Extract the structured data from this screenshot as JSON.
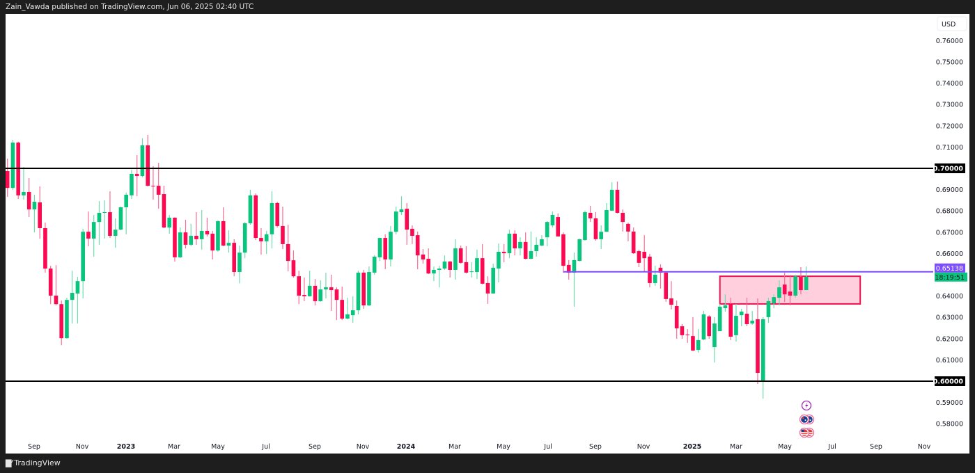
{
  "header": {
    "publisher_line": "Zain_Vawda published on TradingView.com, Jun 06, 2025 02:40 UTC"
  },
  "footer": {
    "brand": "TradingView",
    "logo_mark": "TV"
  },
  "chart_data": {
    "type": "candlestick",
    "interval": "1W",
    "currency_label": "USD",
    "colors": {
      "up": "#08c47d",
      "down": "#fb0a52",
      "up_wick": "#6fdcae",
      "down_wick": "#fb6b93",
      "ray": "#7b4dff",
      "zone_fill": "#ffcfde",
      "zone_border": "#f0134f",
      "level": "#000000",
      "countdown_bg": "#08c47d"
    },
    "ylim": [
      0.575,
      0.767
    ],
    "y_ticks": [
      "0.76000",
      "0.75000",
      "0.74000",
      "0.73000",
      "0.72000",
      "0.71000",
      "0.69000",
      "0.68000",
      "0.67000",
      "0.66000",
      "0.64000",
      "0.63000",
      "0.62000",
      "0.61000",
      "0.59000",
      "0.58000"
    ],
    "x_ticks": [
      {
        "label": "Sep",
        "year": false
      },
      {
        "label": "Nov",
        "year": false
      },
      {
        "label": "2023",
        "year": true
      },
      {
        "label": "Mar",
        "year": false
      },
      {
        "label": "May",
        "year": false
      },
      {
        "label": "Jul",
        "year": false
      },
      {
        "label": "Sep",
        "year": false
      },
      {
        "label": "Nov",
        "year": false
      },
      {
        "label": "2024",
        "year": true
      },
      {
        "label": "Mar",
        "year": false
      },
      {
        "label": "May",
        "year": false
      },
      {
        "label": "Jul",
        "year": false
      },
      {
        "label": "Sep",
        "year": false
      },
      {
        "label": "Nov",
        "year": false
      },
      {
        "label": "2025",
        "year": true
      },
      {
        "label": "Mar",
        "year": false
      },
      {
        "label": "May",
        "year": false
      },
      {
        "label": "Jul",
        "year": false
      },
      {
        "label": "Sep",
        "year": false
      },
      {
        "label": "Nov",
        "year": false
      }
    ],
    "levels": [
      {
        "price": 0.7,
        "label": "0.70000"
      },
      {
        "price": 0.6,
        "label": "0.60000"
      }
    ],
    "ray": {
      "start": "2024-07-22",
      "price": 0.65138,
      "label": "0.65138"
    },
    "countdown": "18:19:51",
    "zone": {
      "start": "2025-02-10",
      "end": "2025-08-11",
      "top": 0.6493,
      "bottom": 0.6363
    },
    "events": [
      {
        "icon": "lightning-icon",
        "color": "#9c27b0"
      },
      {
        "icon": "australia-flag-icon",
        "color": "#1e4fa0"
      },
      {
        "icon": "us-flag-icon",
        "color": "#e53935"
      }
    ],
    "columns": [
      "date",
      "open",
      "high",
      "low",
      "close"
    ],
    "candles": [
      [
        "2022-08-01",
        0.6987,
        0.7046,
        0.6866,
        0.6908
      ],
      [
        "2022-08-08",
        0.6908,
        0.7134,
        0.6899,
        0.7121
      ],
      [
        "2022-08-15",
        0.7121,
        0.7125,
        0.6856,
        0.6873
      ],
      [
        "2022-08-22",
        0.6873,
        0.7007,
        0.6853,
        0.6889
      ],
      [
        "2022-08-29",
        0.6889,
        0.6954,
        0.6771,
        0.6807
      ],
      [
        "2022-09-05",
        0.6807,
        0.6876,
        0.6699,
        0.6843
      ],
      [
        "2022-09-12",
        0.684,
        0.6915,
        0.667,
        0.6719
      ],
      [
        "2022-09-19",
        0.6719,
        0.6745,
        0.651,
        0.6529
      ],
      [
        "2022-09-26",
        0.6529,
        0.6542,
        0.6362,
        0.6402
      ],
      [
        "2022-10-03",
        0.6402,
        0.6545,
        0.6356,
        0.6362
      ],
      [
        "2022-10-10",
        0.6362,
        0.6379,
        0.6169,
        0.6202
      ],
      [
        "2022-10-17",
        0.6202,
        0.6392,
        0.62,
        0.6382
      ],
      [
        "2022-10-24",
        0.6382,
        0.6519,
        0.6271,
        0.6415
      ],
      [
        "2022-10-31",
        0.6412,
        0.649,
        0.6271,
        0.647
      ],
      [
        "2022-11-07",
        0.647,
        0.6716,
        0.6389,
        0.6702
      ],
      [
        "2022-11-14",
        0.6702,
        0.6797,
        0.6634,
        0.667
      ],
      [
        "2022-11-21",
        0.667,
        0.6781,
        0.6585,
        0.6748
      ],
      [
        "2022-11-28",
        0.6748,
        0.6846,
        0.6641,
        0.6791
      ],
      [
        "2022-12-05",
        0.6791,
        0.685,
        0.667,
        0.6794
      ],
      [
        "2022-12-12",
        0.6794,
        0.6892,
        0.6673,
        0.6683
      ],
      [
        "2022-12-19",
        0.6683,
        0.6765,
        0.6627,
        0.6712
      ],
      [
        "2022-12-26",
        0.6712,
        0.682,
        0.6709,
        0.6817
      ],
      [
        "2023-01-02",
        0.6817,
        0.6886,
        0.669,
        0.6876
      ],
      [
        "2023-01-09",
        0.6873,
        0.6993,
        0.6856,
        0.6974
      ],
      [
        "2023-01-16",
        0.6974,
        0.7062,
        0.6869,
        0.6964
      ],
      [
        "2023-01-23",
        0.6964,
        0.7141,
        0.6958,
        0.7108
      ],
      [
        "2023-01-30",
        0.7108,
        0.7157,
        0.6915,
        0.6918
      ],
      [
        "2023-02-06",
        0.6918,
        0.701,
        0.6853,
        0.6915
      ],
      [
        "2023-02-13",
        0.6918,
        0.7026,
        0.681,
        0.6876
      ],
      [
        "2023-02-20",
        0.6879,
        0.6918,
        0.6719,
        0.6722
      ],
      [
        "2023-02-27",
        0.6722,
        0.6781,
        0.6693,
        0.6768
      ],
      [
        "2023-03-06",
        0.6768,
        0.677,
        0.6562,
        0.6582
      ],
      [
        "2023-03-13",
        0.6582,
        0.6722,
        0.6578,
        0.6699
      ],
      [
        "2023-03-20",
        0.6699,
        0.6758,
        0.6624,
        0.6641
      ],
      [
        "2023-03-27",
        0.6641,
        0.6739,
        0.6634,
        0.6683
      ],
      [
        "2023-04-03",
        0.6683,
        0.6794,
        0.6641,
        0.6667
      ],
      [
        "2023-04-10",
        0.6667,
        0.6804,
        0.6618,
        0.6706
      ],
      [
        "2023-04-17",
        0.6706,
        0.6768,
        0.668,
        0.669
      ],
      [
        "2023-04-24",
        0.6693,
        0.6706,
        0.6572,
        0.6614
      ],
      [
        "2023-05-01",
        0.6614,
        0.6755,
        0.6608,
        0.6752
      ],
      [
        "2023-05-08",
        0.6752,
        0.6817,
        0.6634,
        0.6637
      ],
      [
        "2023-05-15",
        0.6637,
        0.6709,
        0.6604,
        0.665
      ],
      [
        "2023-05-22",
        0.665,
        0.6667,
        0.6493,
        0.6513
      ],
      [
        "2023-05-29",
        0.6513,
        0.6637,
        0.646,
        0.6604
      ],
      [
        "2023-06-05",
        0.6604,
        0.6748,
        0.6578,
        0.6742
      ],
      [
        "2023-06-12",
        0.6742,
        0.6899,
        0.6735,
        0.6873
      ],
      [
        "2023-06-19",
        0.6873,
        0.6882,
        0.6663,
        0.6673
      ],
      [
        "2023-06-26",
        0.6673,
        0.6719,
        0.6595,
        0.6657
      ],
      [
        "2023-07-03",
        0.6657,
        0.6706,
        0.6598,
        0.669
      ],
      [
        "2023-07-10",
        0.669,
        0.6892,
        0.6624,
        0.6837
      ],
      [
        "2023-07-17",
        0.6837,
        0.6843,
        0.6722,
        0.6729
      ],
      [
        "2023-07-24",
        0.6729,
        0.682,
        0.6621,
        0.6644
      ],
      [
        "2023-07-31",
        0.6644,
        0.6735,
        0.6516,
        0.6565
      ],
      [
        "2023-08-07",
        0.6568,
        0.6614,
        0.6487,
        0.6493
      ],
      [
        "2023-08-14",
        0.6493,
        0.6519,
        0.6362,
        0.6402
      ],
      [
        "2023-08-21",
        0.6405,
        0.6487,
        0.6376,
        0.6399
      ],
      [
        "2023-08-28",
        0.6399,
        0.6519,
        0.6397,
        0.6448
      ],
      [
        "2023-09-04",
        0.6448,
        0.648,
        0.6356,
        0.6376
      ],
      [
        "2023-09-11",
        0.6376,
        0.6474,
        0.6373,
        0.6431
      ],
      [
        "2023-09-18",
        0.6431,
        0.651,
        0.6389,
        0.6441
      ],
      [
        "2023-09-25",
        0.6441,
        0.65,
        0.633,
        0.6428
      ],
      [
        "2023-10-02",
        0.6431,
        0.6441,
        0.6287,
        0.6382
      ],
      [
        "2023-10-09",
        0.6382,
        0.6444,
        0.6287,
        0.6294
      ],
      [
        "2023-10-16",
        0.6294,
        0.6392,
        0.629,
        0.6314
      ],
      [
        "2023-10-23",
        0.631,
        0.6399,
        0.6274,
        0.6333
      ],
      [
        "2023-10-30",
        0.6333,
        0.6519,
        0.6314,
        0.651
      ],
      [
        "2023-11-06",
        0.651,
        0.6523,
        0.634,
        0.6356
      ],
      [
        "2023-11-13",
        0.6356,
        0.6539,
        0.6353,
        0.6513
      ],
      [
        "2023-11-20",
        0.651,
        0.6592,
        0.65,
        0.6585
      ],
      [
        "2023-11-27",
        0.6582,
        0.6675,
        0.6565,
        0.6673
      ],
      [
        "2023-12-04",
        0.6673,
        0.669,
        0.6526,
        0.6572
      ],
      [
        "2023-12-11",
        0.6572,
        0.6729,
        0.6539,
        0.6702
      ],
      [
        "2023-12-18",
        0.6702,
        0.682,
        0.669,
        0.6797
      ],
      [
        "2023-12-25",
        0.6794,
        0.6869,
        0.6781,
        0.6807
      ],
      [
        "2024-01-01",
        0.681,
        0.6837,
        0.6641,
        0.6712
      ],
      [
        "2024-01-08",
        0.6716,
        0.6732,
        0.6644,
        0.6683
      ],
      [
        "2024-01-15",
        0.6686,
        0.6703,
        0.6526,
        0.6591
      ],
      [
        "2024-01-22",
        0.6595,
        0.6621,
        0.6552,
        0.6572
      ],
      [
        "2024-01-29",
        0.6575,
        0.6624,
        0.6503,
        0.6506
      ],
      [
        "2024-02-05",
        0.6506,
        0.6539,
        0.647,
        0.6523
      ],
      [
        "2024-02-12",
        0.6523,
        0.6542,
        0.6441,
        0.6529
      ],
      [
        "2024-02-19",
        0.6529,
        0.6591,
        0.6523,
        0.6562
      ],
      [
        "2024-02-26",
        0.6562,
        0.6565,
        0.6487,
        0.6523
      ],
      [
        "2024-03-04",
        0.6523,
        0.6667,
        0.6477,
        0.6624
      ],
      [
        "2024-03-11",
        0.6624,
        0.6637,
        0.6552,
        0.6556
      ],
      [
        "2024-03-18",
        0.6559,
        0.6634,
        0.6506,
        0.651
      ],
      [
        "2024-03-25",
        0.6513,
        0.6559,
        0.6487,
        0.6516
      ],
      [
        "2024-04-01",
        0.6513,
        0.6618,
        0.648,
        0.6578
      ],
      [
        "2024-04-08",
        0.6578,
        0.6644,
        0.6455,
        0.6458
      ],
      [
        "2024-04-15",
        0.6461,
        0.6493,
        0.6363,
        0.6412
      ],
      [
        "2024-04-22",
        0.6412,
        0.6552,
        0.641,
        0.6533
      ],
      [
        "2024-04-29",
        0.6529,
        0.6647,
        0.6464,
        0.6608
      ],
      [
        "2024-05-06",
        0.6608,
        0.6644,
        0.6559,
        0.6601
      ],
      [
        "2024-05-13",
        0.6601,
        0.6712,
        0.6578,
        0.6693
      ],
      [
        "2024-05-20",
        0.6693,
        0.6709,
        0.6591,
        0.6624
      ],
      [
        "2024-05-27",
        0.6624,
        0.6676,
        0.6591,
        0.6654
      ],
      [
        "2024-06-03",
        0.6654,
        0.6699,
        0.6572,
        0.6575
      ],
      [
        "2024-06-10",
        0.6575,
        0.6703,
        0.6572,
        0.6611
      ],
      [
        "2024-06-17",
        0.6611,
        0.6676,
        0.6585,
        0.6641
      ],
      [
        "2024-06-24",
        0.6637,
        0.6686,
        0.6634,
        0.6667
      ],
      [
        "2024-07-01",
        0.6676,
        0.6752,
        0.6634,
        0.6748
      ],
      [
        "2024-07-08",
        0.6732,
        0.6797,
        0.6722,
        0.6781
      ],
      [
        "2024-07-15",
        0.6771,
        0.6788,
        0.6679,
        0.668
      ],
      [
        "2024-07-22",
        0.669,
        0.6699,
        0.651,
        0.6542
      ],
      [
        "2024-07-29",
        0.6546,
        0.6569,
        0.6477,
        0.651
      ],
      [
        "2024-08-05",
        0.651,
        0.6604,
        0.635,
        0.6569
      ],
      [
        "2024-08-12",
        0.6565,
        0.667,
        0.6563,
        0.6667
      ],
      [
        "2024-08-19",
        0.6663,
        0.6801,
        0.666,
        0.6794
      ],
      [
        "2024-08-26",
        0.6791,
        0.6824,
        0.6748,
        0.6765
      ],
      [
        "2024-09-02",
        0.6765,
        0.6794,
        0.666,
        0.6667
      ],
      [
        "2024-09-09",
        0.6667,
        0.6732,
        0.6621,
        0.6702
      ],
      [
        "2024-09-16",
        0.6702,
        0.6837,
        0.67,
        0.6804
      ],
      [
        "2024-09-23",
        0.6801,
        0.6935,
        0.68,
        0.6899
      ],
      [
        "2024-09-30",
        0.6899,
        0.6938,
        0.6788,
        0.6791
      ],
      [
        "2024-10-07",
        0.6791,
        0.6807,
        0.6703,
        0.6748
      ],
      [
        "2024-10-14",
        0.6739,
        0.6745,
        0.6657,
        0.6703
      ],
      [
        "2024-10-21",
        0.6703,
        0.6722,
        0.6598,
        0.6601
      ],
      [
        "2024-10-28",
        0.6611,
        0.6618,
        0.6536,
        0.6556
      ],
      [
        "2024-11-04",
        0.6608,
        0.6686,
        0.6513,
        0.6578
      ],
      [
        "2024-11-11",
        0.6585,
        0.6598,
        0.6441,
        0.6461
      ],
      [
        "2024-11-18",
        0.6461,
        0.6542,
        0.6448,
        0.65
      ],
      [
        "2024-11-25",
        0.6533,
        0.6549,
        0.6435,
        0.651
      ],
      [
        "2024-12-02",
        0.651,
        0.6513,
        0.6373,
        0.6386
      ],
      [
        "2024-12-09",
        0.6389,
        0.647,
        0.6337,
        0.6359
      ],
      [
        "2024-12-16",
        0.6353,
        0.6379,
        0.6199,
        0.6248
      ],
      [
        "2024-12-23",
        0.6258,
        0.6268,
        0.6199,
        0.6216
      ],
      [
        "2024-12-30",
        0.6219,
        0.6245,
        0.618,
        0.6216
      ],
      [
        "2025-01-06",
        0.6212,
        0.6301,
        0.6141,
        0.6144
      ],
      [
        "2025-01-13",
        0.6147,
        0.6245,
        0.6134,
        0.6193
      ],
      [
        "2025-01-20",
        0.6196,
        0.633,
        0.6193,
        0.6314
      ],
      [
        "2025-01-27",
        0.6304,
        0.631,
        0.6199,
        0.6212
      ],
      [
        "2025-02-03",
        0.616,
        0.6301,
        0.6088,
        0.6271
      ],
      [
        "2025-02-10",
        0.6235,
        0.6363,
        0.6235,
        0.635
      ],
      [
        "2025-02-17",
        0.6343,
        0.6408,
        0.6327,
        0.6356
      ],
      [
        "2025-02-24",
        0.6363,
        0.6392,
        0.6193,
        0.6209
      ],
      [
        "2025-03-03",
        0.6216,
        0.6363,
        0.6186,
        0.6307
      ],
      [
        "2025-03-10",
        0.631,
        0.634,
        0.6258,
        0.6327
      ],
      [
        "2025-03-17",
        0.6317,
        0.6392,
        0.6258,
        0.6268
      ],
      [
        "2025-03-24",
        0.6271,
        0.633,
        0.6265,
        0.6284
      ],
      [
        "2025-03-31",
        0.6291,
        0.6389,
        0.5987,
        0.6039
      ],
      [
        "2025-04-07",
        0.6,
        0.6301,
        0.5918,
        0.6291
      ],
      [
        "2025-04-14",
        0.6301,
        0.6392,
        0.6274,
        0.6376
      ],
      [
        "2025-04-21",
        0.6366,
        0.6408,
        0.6343,
        0.6395
      ],
      [
        "2025-04-28",
        0.6392,
        0.6474,
        0.6356,
        0.6441
      ],
      [
        "2025-05-05",
        0.6454,
        0.651,
        0.6372,
        0.6408
      ],
      [
        "2025-05-12",
        0.6421,
        0.65,
        0.6356,
        0.6402
      ],
      [
        "2025-05-19",
        0.6402,
        0.65,
        0.6392,
        0.6493
      ],
      [
        "2025-05-26",
        0.649,
        0.6536,
        0.6408,
        0.6428
      ],
      [
        "2025-06-02",
        0.6428,
        0.6539,
        0.6428,
        0.649
      ]
    ]
  }
}
